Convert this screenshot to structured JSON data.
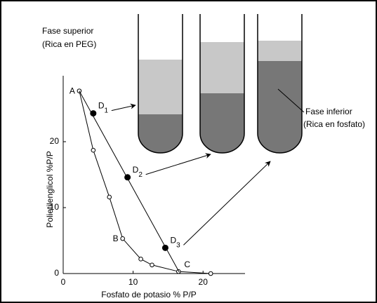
{
  "chart_data": {
    "type": "scatter",
    "x_label": "Fosfato de potasio % P/P",
    "y_label": "Polietilenglicol %P/P",
    "xlim": [
      0,
      26
    ],
    "ylim": [
      0,
      30
    ],
    "xticks": [
      0,
      10,
      20
    ],
    "yticks": [
      0,
      10,
      20
    ],
    "series": [
      {
        "x": [
          2.3,
          4.3,
          6.6,
          8.5,
          11.1,
          12.7,
          16.5,
          21.1
        ],
        "values": [
          27.7,
          18.7,
          11.6,
          5.3,
          2.2,
          1.3,
          0.3,
          0
        ],
        "labels": [
          "A",
          null,
          null,
          "B",
          null,
          null,
          null,
          null
        ],
        "marker": "open",
        "line": true,
        "color": "#000000"
      },
      {
        "x": [
          2.3,
          16.6
        ],
        "values": [
          27.7,
          0.2
        ],
        "labels": [
          null,
          "C"
        ],
        "marker": "none",
        "line": true,
        "color": "#000000"
      },
      {
        "x": [
          4.3,
          9.2,
          14.6
        ],
        "values": [
          24.3,
          14.6,
          3.9
        ],
        "labels": [
          "D",
          "D",
          "D"
        ],
        "sublabels": [
          "1",
          "2",
          "3"
        ],
        "marker": "filled",
        "line": false,
        "color": "#000000"
      }
    ],
    "annotations": [
      "Fase superior",
      "(Rica en PEG)",
      "Fase inferior",
      "(Rica en fosfato)"
    ]
  }
}
